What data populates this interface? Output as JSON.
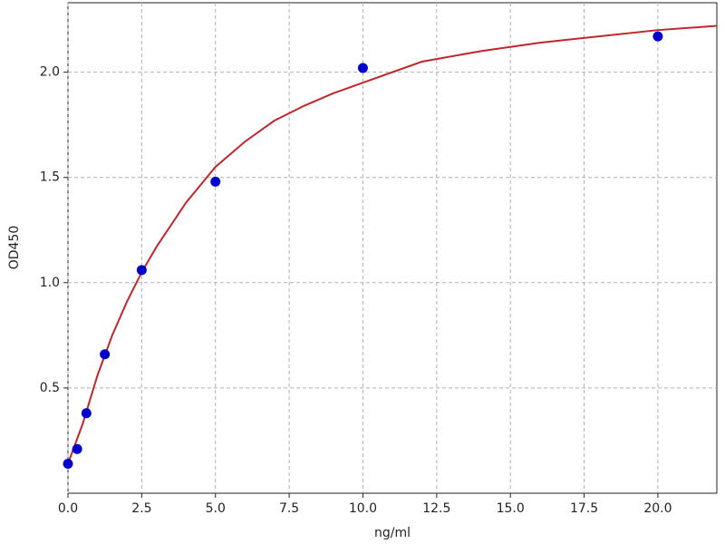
{
  "chart_data": {
    "type": "scatter",
    "xlabel": "ng/ml",
    "ylabel": "OD450",
    "xlim": [
      0,
      22
    ],
    "ylim": [
      0,
      2.33
    ],
    "xticks": [
      {
        "value": 0,
        "label": "0.0"
      },
      2.5,
      {
        "value": 5,
        "label": "5.0"
      },
      7.5,
      {
        "value": 10,
        "label": "10.0"
      },
      12.5,
      {
        "value": 15,
        "label": "15.0"
      },
      17.5,
      {
        "value": 20,
        "label": "20.0"
      }
    ],
    "yticks": [
      0.5,
      {
        "value": 1,
        "label": "1.0"
      },
      1.5,
      {
        "value": 2,
        "label": "2.0"
      }
    ],
    "grid": true,
    "series": [
      {
        "type": "line",
        "color": "#c0272d",
        "x": [
          0,
          0.5,
          1,
          1.5,
          2,
          2.5,
          3,
          4,
          5,
          6,
          7,
          8,
          9,
          10,
          12,
          14,
          16,
          18,
          20,
          22
        ],
        "values": [
          0.14,
          0.33,
          0.56,
          0.75,
          0.91,
          1.05,
          1.17,
          1.38,
          1.55,
          1.67,
          1.77,
          1.84,
          1.9,
          1.95,
          2.05,
          2.1,
          2.14,
          2.17,
          2.2,
          2.22
        ]
      },
      {
        "type": "scatter",
        "color": "#0000cc",
        "x": [
          0,
          0.3125,
          0.625,
          1.25,
          2.5,
          5,
          10,
          20
        ],
        "values": [
          0.14,
          0.21,
          0.38,
          0.66,
          1.06,
          1.48,
          2.02,
          2.17
        ]
      }
    ]
  }
}
